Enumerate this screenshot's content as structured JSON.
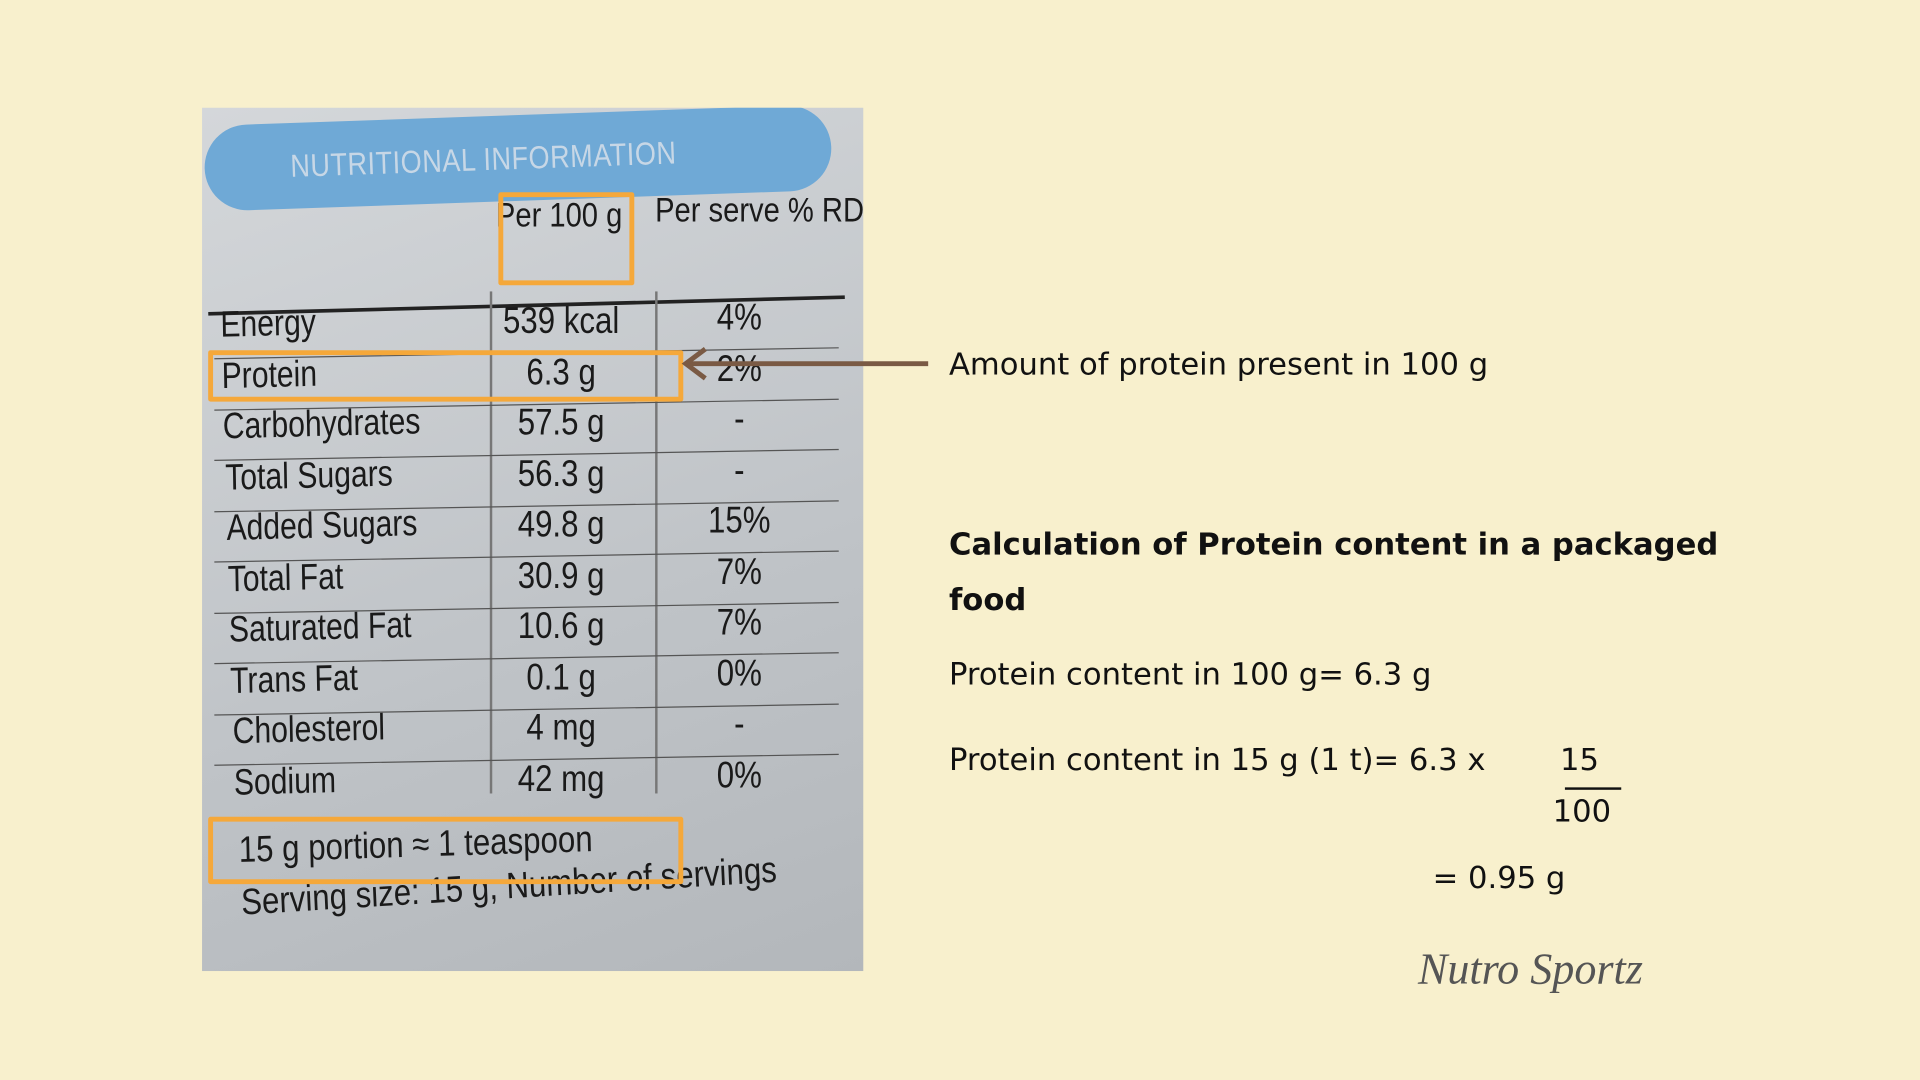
{
  "label": {
    "title": "NUTRITIONAL INFORMATION",
    "columns": [
      "Per 100 g",
      "Per serve % RDA"
    ],
    "rows": [
      [
        "Energy",
        "539 kcal",
        "4%"
      ],
      [
        "Protein",
        "6.3 g",
        "2%"
      ],
      [
        "Carbohydrates",
        "57.5 g",
        "-"
      ],
      [
        "Total Sugars",
        "56.3 g",
        "-"
      ],
      [
        "Added Sugars",
        "49.8 g",
        "15%"
      ],
      [
        "Total Fat",
        "30.9 g",
        "7%"
      ],
      [
        "Saturated Fat",
        "10.6 g",
        "7%"
      ],
      [
        "Trans Fat",
        "0.1 g",
        "0%"
      ],
      [
        "Cholesterol",
        "4 mg",
        "-"
      ],
      [
        "Sodium",
        "42 mg",
        "0%"
      ]
    ],
    "portion": "15 g portion ≈ 1 teaspoon",
    "serving": "Serving size: 15 g, Number of servings"
  },
  "annotation": "Amount of protein present in 100 g",
  "calculation": {
    "title": "Calculation of Protein content in a packaged food",
    "line1": "Protein content in 100 g= 6.3 g",
    "line2": "Protein content in 15 g (1 t)= 6.3 x",
    "numerator": "15",
    "denominator": "100",
    "result": "= 0.95 g"
  },
  "brand": "Nutro Sportz"
}
